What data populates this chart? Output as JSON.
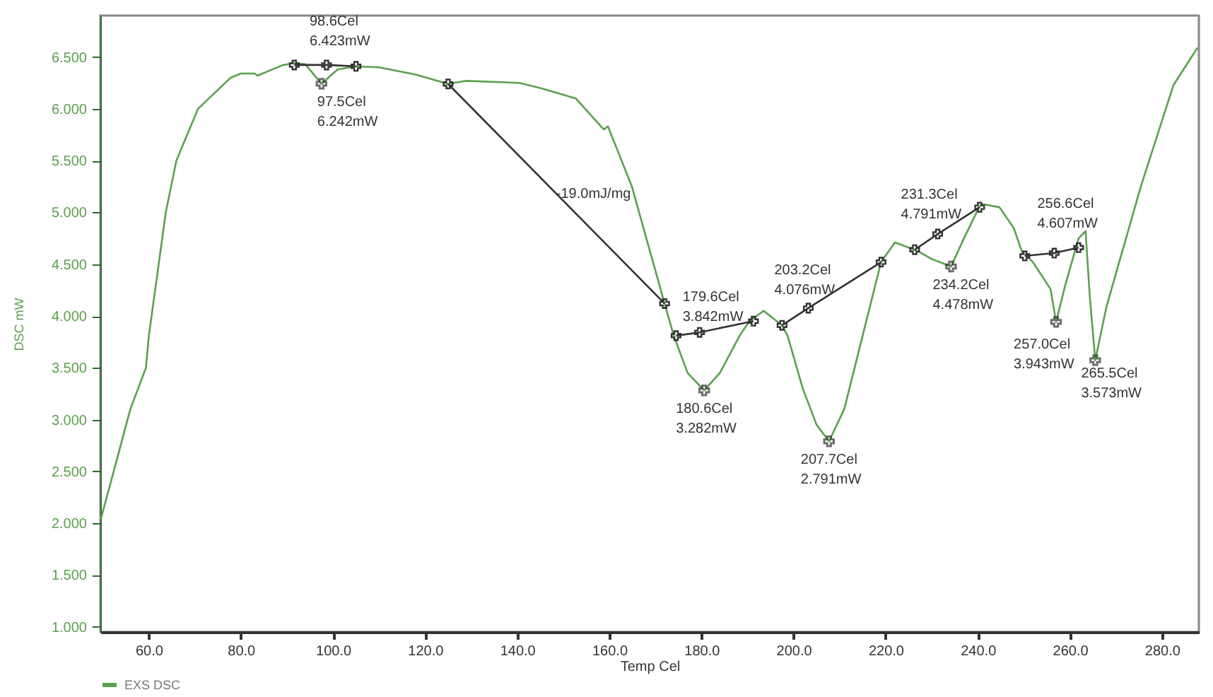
{
  "chart_data": {
    "type": "line",
    "xlabel": "Temp Cel",
    "ylabel": "DSC mW",
    "legend": "bottom",
    "grid": false,
    "marker": "none",
    "line_style": "solid",
    "xlim": [
      49.5,
      288
    ],
    "ylim": [
      0.95,
      6.9
    ],
    "xticks": [
      {
        "value": 60,
        "label": "60.0"
      },
      {
        "value": 80,
        "label": "80.0"
      },
      {
        "value": 100,
        "label": "100.0"
      },
      {
        "value": 120,
        "label": "120.0"
      },
      {
        "value": 140,
        "label": "140.0"
      },
      {
        "value": 160,
        "label": "160.0"
      },
      {
        "value": 180,
        "label": "180.0"
      },
      {
        "value": 200,
        "label": "200.0"
      },
      {
        "value": 220,
        "label": "220.0"
      },
      {
        "value": 240,
        "label": "240.0"
      },
      {
        "value": 260,
        "label": "260.0"
      },
      {
        "value": 280,
        "label": "280.0"
      }
    ],
    "yticks": [
      {
        "value": 1,
        "label": "1.000"
      },
      {
        "value": 1.5,
        "label": "1.500"
      },
      {
        "value": 2,
        "label": "2.000"
      },
      {
        "value": 2.5,
        "label": "2.500"
      },
      {
        "value": 3,
        "label": "3.000"
      },
      {
        "value": 3.5,
        "label": "3.500"
      },
      {
        "value": 4,
        "label": "4.000"
      },
      {
        "value": 4.5,
        "label": "4.500"
      },
      {
        "value": 5,
        "label": "5.000"
      },
      {
        "value": 5.5,
        "label": "5.500"
      },
      {
        "value": 6,
        "label": "6.000"
      },
      {
        "value": 6.5,
        "label": "6.500"
      }
    ],
    "series": [
      {
        "name": "EXS DSC",
        "color": "#5ba04f",
        "x": [
          49.6,
          53,
          56,
          59.4,
          60,
          63.7,
          66,
          70.7,
          77.8,
          80,
          83,
          83.6,
          89,
          91.3,
          94,
          97.5,
          101,
          105,
          110,
          118,
          125,
          129,
          140.4,
          145,
          152.7,
          158.8,
          159.7,
          164.9,
          172,
          174,
          177,
          180.6,
          184,
          188.3,
          190.4,
          193.5,
          197.5,
          198.7,
          202,
          205,
          207.7,
          211,
          215,
          219,
          222,
          225,
          227.2,
          230,
          234.2,
          237,
          240.4,
          241,
          244.7,
          247.8,
          249.6,
          251.8,
          255.8,
          257,
          259,
          261.9,
          263.4,
          264.3,
          265.5,
          268,
          275.4,
          282.5,
          287.7
        ],
        "values": [
          2.04,
          2.6,
          3.1,
          3.5,
          3.8,
          5.0,
          5.5,
          6.0,
          6.3,
          6.34,
          6.34,
          6.32,
          6.42,
          6.44,
          6.43,
          6.242,
          6.38,
          6.41,
          6.4,
          6.33,
          6.24,
          6.27,
          6.25,
          6.2,
          6.1,
          5.8,
          5.83,
          5.25,
          4.12,
          3.81,
          3.45,
          3.282,
          3.45,
          3.81,
          3.95,
          4.05,
          3.91,
          3.81,
          3.3,
          2.95,
          2.791,
          3.1,
          3.81,
          4.52,
          4.71,
          4.66,
          4.62,
          4.55,
          4.478,
          4.75,
          5.06,
          5.08,
          5.05,
          4.85,
          4.62,
          4.53,
          4.26,
          3.943,
          4.3,
          4.75,
          4.82,
          4.2,
          3.573,
          4.1,
          5.25,
          6.23,
          6.59
        ]
      },
      {
        "type": "line",
        "color": "#333333",
        "marker": "cross",
        "x": [
          91.6,
          98.6,
          105
        ],
        "values": [
          6.423,
          6.423,
          6.41
        ]
      },
      {
        "type": "line",
        "color": "#333333",
        "marker": "cross",
        "x": [
          125,
          172
        ],
        "values": [
          6.24,
          4.12
        ]
      },
      {
        "type": "line",
        "color": "#333333",
        "marker": "cross",
        "x": [
          174.5,
          179.6,
          191.3
        ],
        "values": [
          3.81,
          3.842,
          3.95
        ]
      },
      {
        "type": "line",
        "color": "#333333",
        "marker": "cross",
        "x": [
          197.5,
          203.2,
          219
        ],
        "values": [
          3.91,
          4.076,
          4.52
        ]
      },
      {
        "type": "line",
        "color": "#333333",
        "marker": "cross",
        "x": [
          226.3,
          231.3,
          240.4
        ],
        "values": [
          4.64,
          4.791,
          5.05
        ]
      },
      {
        "type": "line",
        "color": "#333333",
        "marker": "cross",
        "x": [
          250.2,
          256.6,
          261.9
        ],
        "values": [
          4.58,
          4.607,
          4.66
        ]
      },
      {
        "type": "scatter",
        "color": "#333333",
        "marker": "cross",
        "x": [
          97.5,
          180.6,
          207.7,
          234.2,
          257.0,
          265.5
        ],
        "values": [
          6.242,
          3.282,
          2.791,
          4.478,
          3.943,
          3.573
        ]
      }
    ],
    "annotations": [
      {
        "text": "98.6Cel\n6.423mW",
        "x": 98.6,
        "y": 6.423
      },
      {
        "text": "97.5Cel\n6.242mW",
        "x": 97.5,
        "y": 6.242
      },
      {
        "text": "-19.0mJ/mg",
        "x": 150,
        "y": 5.11
      },
      {
        "text": "179.6Cel\n3.842mW",
        "x": 179.6,
        "y": 3.842
      },
      {
        "text": "180.6Cel\n3.282mW",
        "x": 180.6,
        "y": 3.282
      },
      {
        "text": "203.2Cel\n4.076mW",
        "x": 203.2,
        "y": 4.076
      },
      {
        "text": "207.7Cel\n2.791mW",
        "x": 207.7,
        "y": 2.791
      },
      {
        "text": "231.3Cel\n4.791mW",
        "x": 231.3,
        "y": 4.791
      },
      {
        "text": "234.2Cel\n4.478mW",
        "x": 234.2,
        "y": 4.478
      },
      {
        "text": "256.6Cel\n4.607mW",
        "x": 256.6,
        "y": 4.607
      },
      {
        "text": "257.0Cel\n3.943mW",
        "x": 257.0,
        "y": 3.943
      },
      {
        "text": "265.5Cel\n3.573mW",
        "x": 265.5,
        "y": 3.573
      }
    ]
  }
}
